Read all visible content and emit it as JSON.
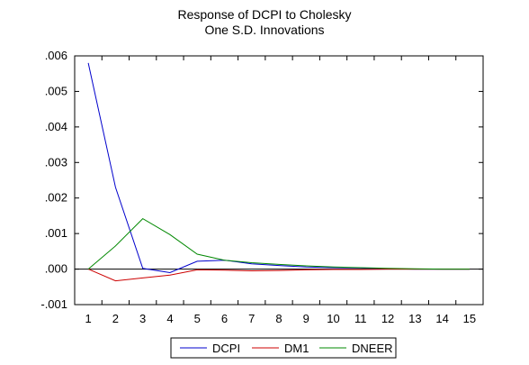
{
  "chart_data": {
    "type": "line",
    "title": "Response of DCPI to Cholesky",
    "subtitle": "One S.D. Innovations",
    "xlabel": "",
    "ylabel": "",
    "x": [
      1,
      2,
      3,
      4,
      5,
      6,
      7,
      8,
      9,
      10,
      11,
      12,
      13,
      14,
      15
    ],
    "x_tick_labels": [
      "1",
      "2",
      "3",
      "4",
      "5",
      "6",
      "7",
      "8",
      "9",
      "10",
      "11",
      "12",
      "13",
      "14",
      "15"
    ],
    "ylim": [
      -0.001,
      0.006
    ],
    "y_ticks": [
      -0.001,
      0.0,
      0.001,
      0.002,
      0.003,
      0.004,
      0.005,
      0.006
    ],
    "y_tick_labels": [
      "-.001",
      ".000",
      ".001",
      ".002",
      ".003",
      ".004",
      ".005",
      ".006"
    ],
    "grid": false,
    "zero_line": true,
    "legend_position": "bottom-center",
    "series": [
      {
        "name": "DCPI",
        "color": "#0000cc",
        "values": [
          0.0058,
          0.0023,
          2e-05,
          -0.0001,
          0.00022,
          0.00025,
          0.00015,
          0.0001,
          6e-05,
          4e-05,
          3e-05,
          1e-05,
          0.0,
          0.0,
          0.0
        ]
      },
      {
        "name": "DM1",
        "color": "#cc0000",
        "values": [
          0.0,
          -0.00033,
          -0.00025,
          -0.00017,
          -2e-05,
          -3e-05,
          -5e-05,
          -4e-05,
          -2e-05,
          -1e-05,
          -1e-05,
          0.0,
          0.0,
          0.0,
          0.0
        ]
      },
      {
        "name": "DNEER",
        "color": "#008800",
        "values": [
          0.0,
          0.00065,
          0.00142,
          0.00097,
          0.00042,
          0.00025,
          0.00018,
          0.00013,
          9e-05,
          6e-05,
          4e-05,
          2e-05,
          1e-05,
          0.0,
          0.0
        ]
      }
    ]
  }
}
